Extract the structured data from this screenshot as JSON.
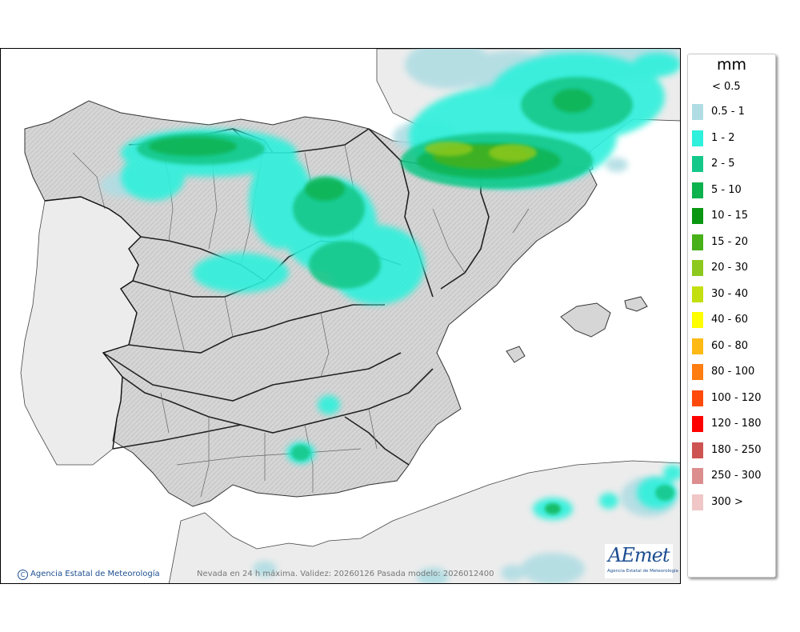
{
  "legend": {
    "title": "mm",
    "below_label": "< 0.5",
    "items": [
      {
        "label": "0.5 - 1",
        "color": "#b0dde3"
      },
      {
        "label": "1 - 2",
        "color": "#2ef0dc"
      },
      {
        "label": "2 - 5",
        "color": "#14c88a"
      },
      {
        "label": "5 - 10",
        "color": "#0db14d"
      },
      {
        "label": "10 - 15",
        "color": "#0a9612"
      },
      {
        "label": "15 - 20",
        "color": "#48b018"
      },
      {
        "label": "20 - 30",
        "color": "#8cc81e"
      },
      {
        "label": "30 - 40",
        "color": "#c3df10"
      },
      {
        "label": "40 - 60",
        "color": "#ffff00"
      },
      {
        "label": "60 - 80",
        "color": "#ffb915"
      },
      {
        "label": "80 - 100",
        "color": "#ff7d11"
      },
      {
        "label": "100 - 120",
        "color": "#ff4a0c"
      },
      {
        "label": "120 - 180",
        "color": "#ff0000"
      },
      {
        "label": "180 - 250",
        "color": "#cd5450"
      },
      {
        "label": "250 - 300",
        "color": "#dc8e8e"
      },
      {
        "label": "300 >",
        "color": "#f0c6c6"
      }
    ]
  },
  "footer": {
    "agency_credit": "Agencia Estatal de Meteorología",
    "caption": "Nevada en 24 h máxima. Validez: 20260126 Pasada modelo: 2026012400"
  },
  "logo": {
    "wordmark": "AEmet",
    "subtitle": "Agencia Estatal de Meteorología"
  },
  "colors": {
    "sea": "#ffffff",
    "land": "#d6d6d6",
    "foreign_land": "#ececec",
    "border": "#222222"
  }
}
